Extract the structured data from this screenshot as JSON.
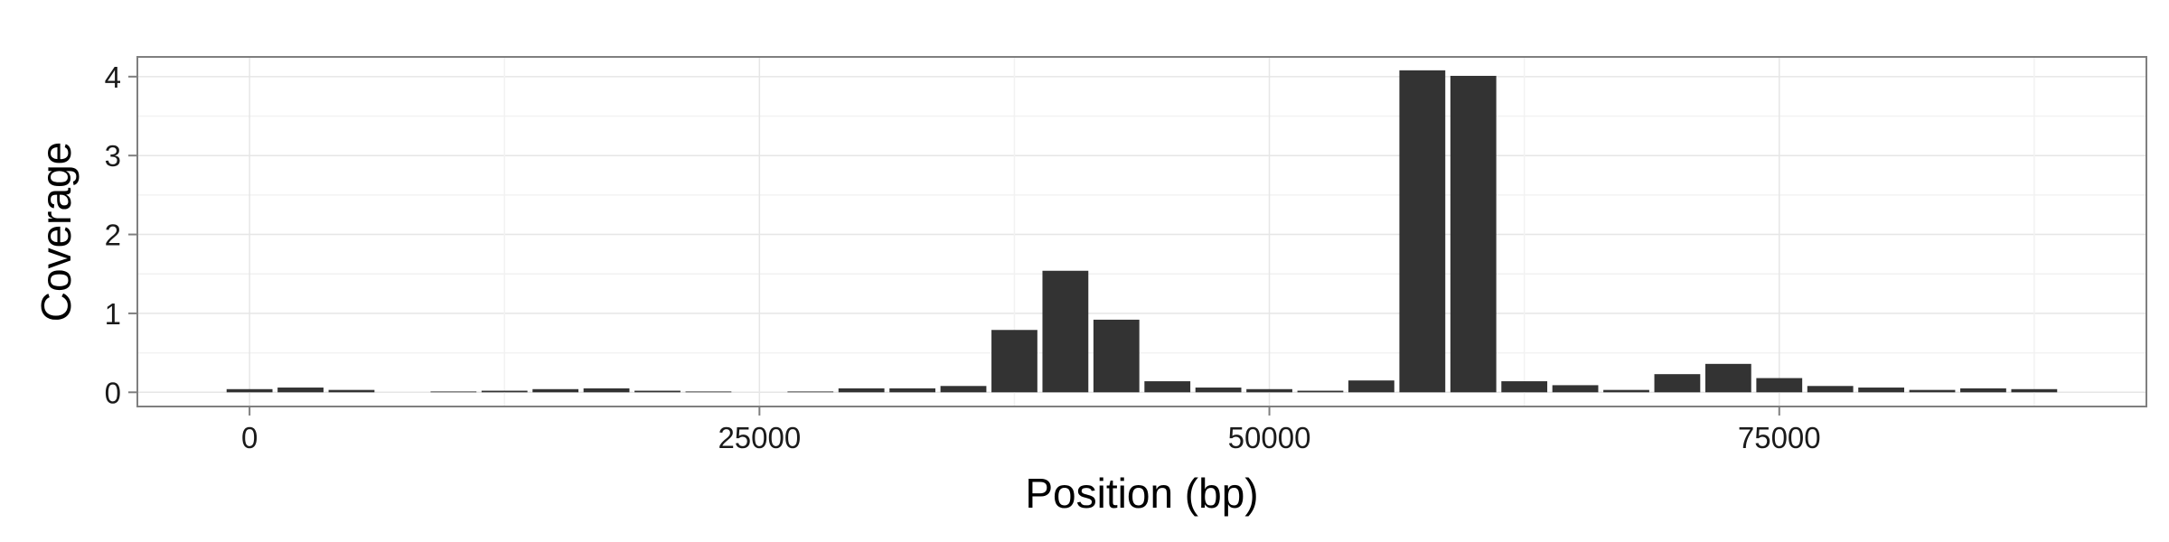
{
  "chart_data": {
    "type": "bar",
    "title": "",
    "xlabel": "Position (bp)",
    "ylabel": "Coverage",
    "xlim": [
      -5500,
      93000
    ],
    "ylim": [
      -0.18,
      4.25
    ],
    "x_ticks": [
      0,
      25000,
      50000,
      75000
    ],
    "x_tick_labels": [
      "0",
      "25000",
      "50000",
      "75000"
    ],
    "y_ticks": [
      0,
      1,
      2,
      3,
      4
    ],
    "y_tick_labels": [
      "0",
      "1",
      "2",
      "3",
      "4"
    ],
    "grid": true,
    "bin_width": 2500,
    "x": [
      0,
      2500,
      5000,
      7500,
      10000,
      12500,
      15000,
      17500,
      20000,
      22500,
      25000,
      27500,
      30000,
      32500,
      35000,
      37500,
      40000,
      42500,
      45000,
      47500,
      50000,
      52500,
      55000,
      57500,
      60000,
      62500,
      65000,
      67500,
      70000,
      72500,
      75000,
      77500,
      80000,
      82500,
      85000,
      87500
    ],
    "values": [
      0.04,
      0.06,
      0.03,
      0.0,
      0.01,
      0.02,
      0.04,
      0.05,
      0.02,
      0.01,
      0.0,
      0.01,
      0.05,
      0.05,
      0.08,
      0.79,
      1.54,
      0.92,
      0.14,
      0.06,
      0.04,
      0.02,
      0.15,
      4.08,
      4.01,
      0.14,
      0.09,
      0.03,
      0.23,
      0.36,
      0.18,
      0.08,
      0.06,
      0.03,
      0.05,
      0.04
    ]
  },
  "colors": {
    "bar": "#333333",
    "panel_border": "#7f7f7f",
    "grid_major": "#e6e6e6",
    "grid_minor": "#f2f2f2",
    "tick": "#7f7f7f"
  }
}
